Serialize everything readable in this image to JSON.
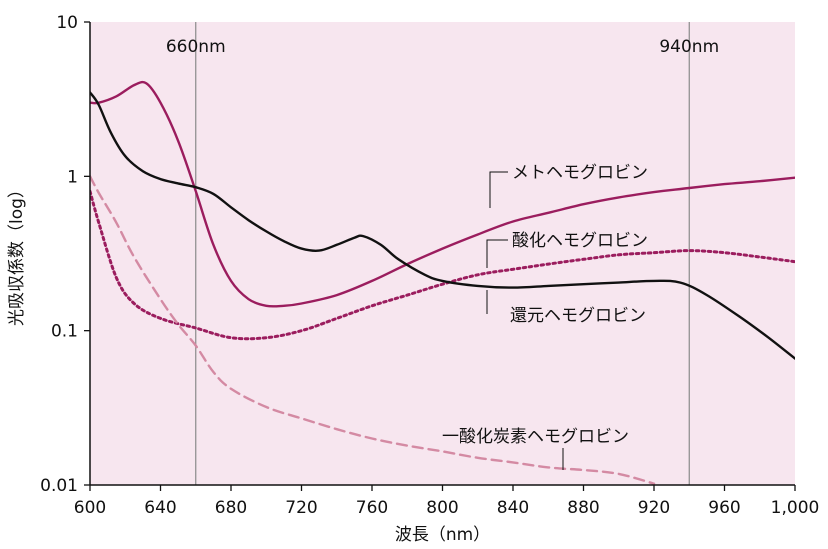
{
  "chart_data": {
    "type": "line",
    "title": "",
    "xlabel": "波長（nm）",
    "ylabel": "光吸収係数（log）",
    "xlim": [
      600,
      1000
    ],
    "ylim": [
      0.01,
      10
    ],
    "yscale": "log",
    "grid": false,
    "plot_background": "#f7e6ef",
    "x_ticks": [
      600,
      640,
      680,
      720,
      760,
      800,
      840,
      880,
      920,
      960,
      1000
    ],
    "x_tick_labels": [
      "600",
      "640",
      "680",
      "720",
      "760",
      "800",
      "840",
      "880",
      "920",
      "960",
      "1,000"
    ],
    "y_ticks": [
      0.01,
      0.1,
      1,
      10
    ],
    "y_tick_labels": [
      "0.01",
      "0.1",
      "1",
      "10"
    ],
    "reference_lines": [
      {
        "x": 660,
        "label": "660nm"
      },
      {
        "x": 940,
        "label": "940nm"
      }
    ],
    "series": [
      {
        "name": "メトヘモグロビン",
        "color": "#9b1d5e",
        "style": "solid",
        "x": [
          600,
          605,
          615,
          625,
          632,
          640,
          650,
          660,
          670,
          680,
          690,
          700,
          710,
          720,
          740,
          760,
          780,
          800,
          820,
          840,
          860,
          880,
          900,
          920,
          940,
          960,
          980,
          1000
        ],
        "y": [
          3.0,
          3.0,
          3.3,
          3.9,
          4.0,
          3.0,
          1.7,
          0.8,
          0.36,
          0.21,
          0.16,
          0.145,
          0.145,
          0.15,
          0.17,
          0.21,
          0.27,
          0.34,
          0.42,
          0.51,
          0.58,
          0.66,
          0.73,
          0.79,
          0.84,
          0.89,
          0.93,
          0.98
        ]
      },
      {
        "name": "酸化ヘモグロビン",
        "color": "#9b1d5e",
        "style": "dotted",
        "x": [
          600,
          605,
          615,
          625,
          640,
          660,
          680,
          700,
          720,
          740,
          760,
          780,
          800,
          820,
          840,
          860,
          880,
          900,
          920,
          940,
          960,
          980,
          1000
        ],
        "y": [
          0.8,
          0.5,
          0.22,
          0.15,
          0.12,
          0.104,
          0.09,
          0.09,
          0.1,
          0.12,
          0.145,
          0.17,
          0.2,
          0.23,
          0.25,
          0.27,
          0.29,
          0.31,
          0.32,
          0.33,
          0.32,
          0.3,
          0.28
        ]
      },
      {
        "name": "還元ヘモグロビン",
        "color": "#111111",
        "style": "solid",
        "x": [
          600,
          605,
          612,
          620,
          630,
          640,
          650,
          660,
          670,
          680,
          690,
          700,
          710,
          720,
          730,
          740,
          750,
          755,
          765,
          775,
          790,
          800,
          820,
          840,
          860,
          880,
          900,
          920,
          935,
          950,
          970,
          985,
          1000
        ],
        "y": [
          3.5,
          2.9,
          1.9,
          1.35,
          1.08,
          0.96,
          0.9,
          0.85,
          0.77,
          0.63,
          0.52,
          0.44,
          0.38,
          0.34,
          0.33,
          0.36,
          0.4,
          0.41,
          0.36,
          0.29,
          0.23,
          0.21,
          0.195,
          0.19,
          0.195,
          0.2,
          0.205,
          0.21,
          0.205,
          0.17,
          0.12,
          0.09,
          0.066
        ]
      },
      {
        "name": "一酸化炭素ヘモグロビン",
        "color": "#d48aa3",
        "style": "dashed",
        "x": [
          600,
          605,
          615,
          625,
          640,
          650,
          660,
          670,
          680,
          700,
          720,
          740,
          760,
          780,
          800,
          820,
          840,
          860,
          880,
          900,
          920
        ],
        "y": [
          1.0,
          0.78,
          0.5,
          0.3,
          0.16,
          0.11,
          0.08,
          0.054,
          0.042,
          0.032,
          0.027,
          0.023,
          0.02,
          0.018,
          0.0165,
          0.015,
          0.014,
          0.013,
          0.0125,
          0.0118,
          0.0102
        ]
      }
    ]
  }
}
